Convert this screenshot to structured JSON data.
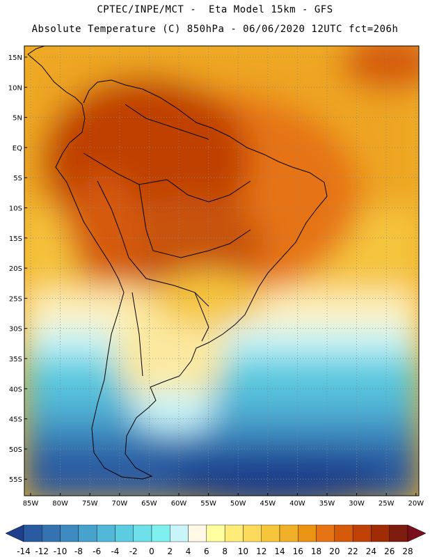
{
  "header": {
    "line1": "CPTEC/INPE/MCT -  Eta Model 15km - GFS",
    "line2": "Absolute Temperature (C) 850hPa - 06/06/2020 12UTC fct=206h"
  },
  "map": {
    "lat_labels": [
      "15N",
      "10N",
      "5N",
      "EQ",
      "5S",
      "10S",
      "15S",
      "20S",
      "25S",
      "30S",
      "35S",
      "40S",
      "45S",
      "50S",
      "55S"
    ],
    "lon_labels": [
      "85W",
      "80W",
      "75W",
      "70W",
      "65W",
      "60W",
      "55W",
      "50W",
      "45W",
      "40W",
      "35W",
      "30W",
      "25W",
      "20W"
    ],
    "grid": true
  },
  "colorbar": {
    "ticks": [
      "-14",
      "-12",
      "-10",
      "-8",
      "-6",
      "-4",
      "-2",
      "0",
      "2",
      "4",
      "6",
      "8",
      "10",
      "12",
      "14",
      "16",
      "18",
      "20",
      "22",
      "24",
      "26",
      "28"
    ],
    "colors": [
      "#1f3f8c",
      "#2a5aa0",
      "#3473b0",
      "#3d8bc0",
      "#48a3cc",
      "#52b8d8",
      "#5ccde0",
      "#6ee0ea",
      "#7ff0f0",
      "#c8f4fa",
      "#fff8e6",
      "#ffffa0",
      "#ffeb78",
      "#fbd95a",
      "#f5c53c",
      "#f0b028",
      "#eb9414",
      "#e67314",
      "#d55a0a",
      "#c04105",
      "#a02c05",
      "#7e1c10",
      "#7a0f1e"
    ],
    "unit": "C"
  }
}
